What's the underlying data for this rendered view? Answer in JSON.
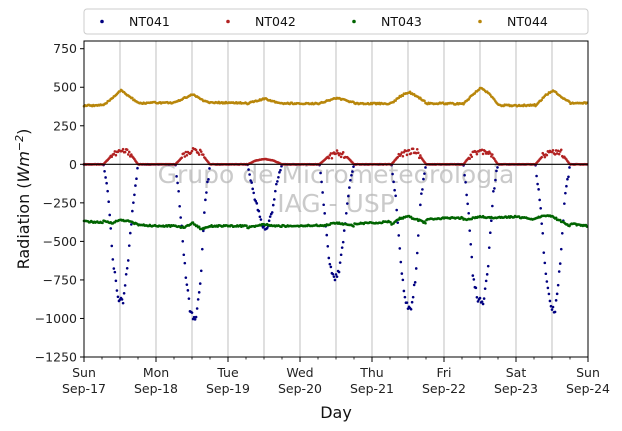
{
  "chart_data": {
    "type": "scatter",
    "xlabel": "Day",
    "ylabel": "Radiation (Wm⁻²)",
    "ylabel_parts": {
      "main": "Radiation (",
      "symbol": "Wm",
      "exp": "−2",
      "close": ")"
    },
    "ylim": [
      -1250,
      800
    ],
    "xlim": [
      "Sep-17",
      "Sep-24"
    ],
    "yticks": [
      -1250,
      -1000,
      -750,
      -500,
      -250,
      0,
      250,
      500,
      750
    ],
    "yticks_labels": [
      "−1250",
      "−1000",
      "−750",
      "−500",
      "−250",
      "0",
      "250",
      "500",
      "750"
    ],
    "xticks": [
      {
        "day": "Sun",
        "date": "Sep-17"
      },
      {
        "day": "Mon",
        "date": "Sep-18"
      },
      {
        "day": "Tue",
        "date": "Sep-19"
      },
      {
        "day": "Wed",
        "date": "Sep-20"
      },
      {
        "day": "Thu",
        "date": "Sep-21"
      },
      {
        "day": "Fri",
        "date": "Sep-22"
      },
      {
        "day": "Sat",
        "date": "Sep-23"
      },
      {
        "day": "Sun",
        "date": "Sep-24"
      }
    ],
    "grid": "vertical",
    "legend_position": "top",
    "zero_line": true,
    "watermark": [
      "Grupo de Micrometeorologia",
      "IAG - USP"
    ],
    "series": [
      {
        "name": "NT041",
        "color": "#000080",
        "baseline": 0,
        "days": [
          {
            "date": "Sep-17",
            "values": [
              0,
              -200,
              -650,
              -870,
              -900,
              -620,
              -250,
              0
            ]
          },
          {
            "date": "Sep-18",
            "values": [
              0,
              -300,
              -700,
              -950,
              -1020,
              -800,
              -250,
              0
            ]
          },
          {
            "date": "Sep-19",
            "values": [
              0,
              -150,
              -280,
              -400,
              -420,
              -300,
              -120,
              0
            ]
          },
          {
            "date": "Sep-20",
            "values": [
              0,
              -300,
              -650,
              -750,
              -700,
              -450,
              -150,
              0
            ]
          },
          {
            "date": "Sep-21",
            "values": [
              0,
              -250,
              -700,
              -900,
              -950,
              -700,
              -200,
              0
            ]
          },
          {
            "date": "Sep-22",
            "values": [
              0,
              -300,
              -750,
              -880,
              -900,
              -650,
              -200,
              0
            ]
          },
          {
            "date": "Sep-23",
            "values": [
              0,
              -250,
              -700,
              -920,
              -950,
              -650,
              -200,
              0
            ]
          }
        ]
      },
      {
        "name": "NT042",
        "color": "#b22222",
        "baseline": 0,
        "days": [
          {
            "date": "Sep-17",
            "values": [
              0,
              60,
              85,
              80,
              0
            ]
          },
          {
            "date": "Sep-18",
            "values": [
              0,
              60,
              95,
              70,
              0
            ]
          },
          {
            "date": "Sep-19",
            "values": [
              0,
              25,
              35,
              25,
              0
            ]
          },
          {
            "date": "Sep-20",
            "values": [
              0,
              50,
              70,
              60,
              0
            ]
          },
          {
            "date": "Sep-21",
            "values": [
              0,
              65,
              85,
              80,
              0
            ]
          },
          {
            "date": "Sep-22",
            "values": [
              0,
              70,
              90,
              80,
              0
            ]
          },
          {
            "date": "Sep-23",
            "values": [
              0,
              65,
              85,
              75,
              0
            ]
          }
        ]
      },
      {
        "name": "NT043",
        "color": "#006400",
        "daily_base": [
          -370,
          -400,
          -400,
          -400,
          -380,
          -350,
          -340,
          -400
        ],
        "days": [
          {
            "date": "Sep-17",
            "values": [
              -370,
              -380,
              -360,
              -370,
              -390
            ]
          },
          {
            "date": "Sep-18",
            "values": [
              -400,
              -410,
              -380,
              -420,
              -400
            ]
          },
          {
            "date": "Sep-19",
            "values": [
              -410,
              -400,
              -390,
              -400,
              -400
            ]
          },
          {
            "date": "Sep-20",
            "values": [
              -400,
              -390,
              -380,
              -390,
              -400
            ]
          },
          {
            "date": "Sep-21",
            "values": [
              -390,
              -350,
              -340,
              -360,
              -380
            ]
          },
          {
            "date": "Sep-22",
            "values": [
              -360,
              -350,
              -340,
              -345,
              -350
            ]
          },
          {
            "date": "Sep-23",
            "values": [
              -350,
              -330,
              -340,
              -370,
              -400
            ]
          }
        ]
      },
      {
        "name": "NT044",
        "color": "#b8860b",
        "daily_base": [
          380,
          400,
          400,
          395,
          395,
          395,
          380,
          400
        ],
        "days": [
          {
            "date": "Sep-17",
            "values": [
              380,
              430,
              480,
              440,
              400
            ]
          },
          {
            "date": "Sep-18",
            "values": [
              400,
              430,
              455,
              420,
              400
            ]
          },
          {
            "date": "Sep-19",
            "values": [
              395,
              410,
              425,
              410,
              395
            ]
          },
          {
            "date": "Sep-20",
            "values": [
              395,
              415,
              430,
              415,
              400
            ]
          },
          {
            "date": "Sep-21",
            "values": [
              395,
              440,
              470,
              440,
              400
            ]
          },
          {
            "date": "Sep-22",
            "values": [
              390,
              450,
              495,
              460,
              390
            ]
          },
          {
            "date": "Sep-23",
            "values": [
              375,
              440,
              480,
              440,
              400
            ]
          }
        ]
      }
    ]
  }
}
